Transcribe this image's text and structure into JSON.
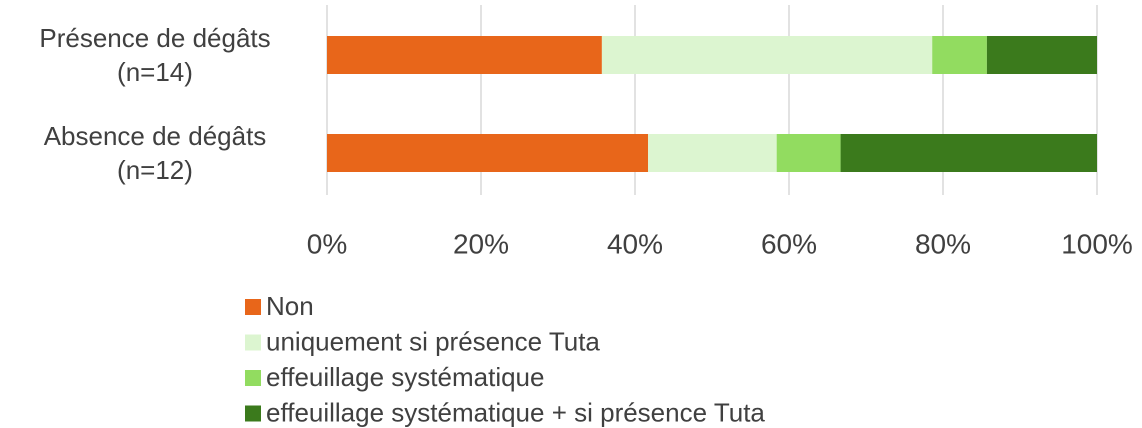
{
  "chart_data": {
    "type": "stacked-barh",
    "categories": [
      "Présence de dégâts\n(n=14)",
      "Absence de dégâts\n(n=12)"
    ],
    "series": [
      {
        "name": "Non",
        "color": "#e8661a",
        "values": [
          35.7,
          41.7
        ]
      },
      {
        "name": "uniquement si présence Tuta",
        "color": "#dcf5d0",
        "values": [
          42.9,
          16.7
        ]
      },
      {
        "name": "effeuillage systématique",
        "color": "#92dc60",
        "values": [
          7.1,
          8.3
        ]
      },
      {
        "name": "effeuillage systématique + si présence Tuta",
        "color": "#3b7a1c",
        "values": [
          14.3,
          33.3
        ]
      }
    ],
    "xlim": [
      0,
      100
    ],
    "xticks": [
      {
        "value": 0,
        "label": "0%"
      },
      {
        "value": 20,
        "label": "20%"
      },
      {
        "value": 40,
        "label": "40%"
      },
      {
        "value": 60,
        "label": "60%"
      },
      {
        "value": 80,
        "label": "80%"
      },
      {
        "value": 100,
        "label": "100%"
      }
    ],
    "grid": true
  }
}
